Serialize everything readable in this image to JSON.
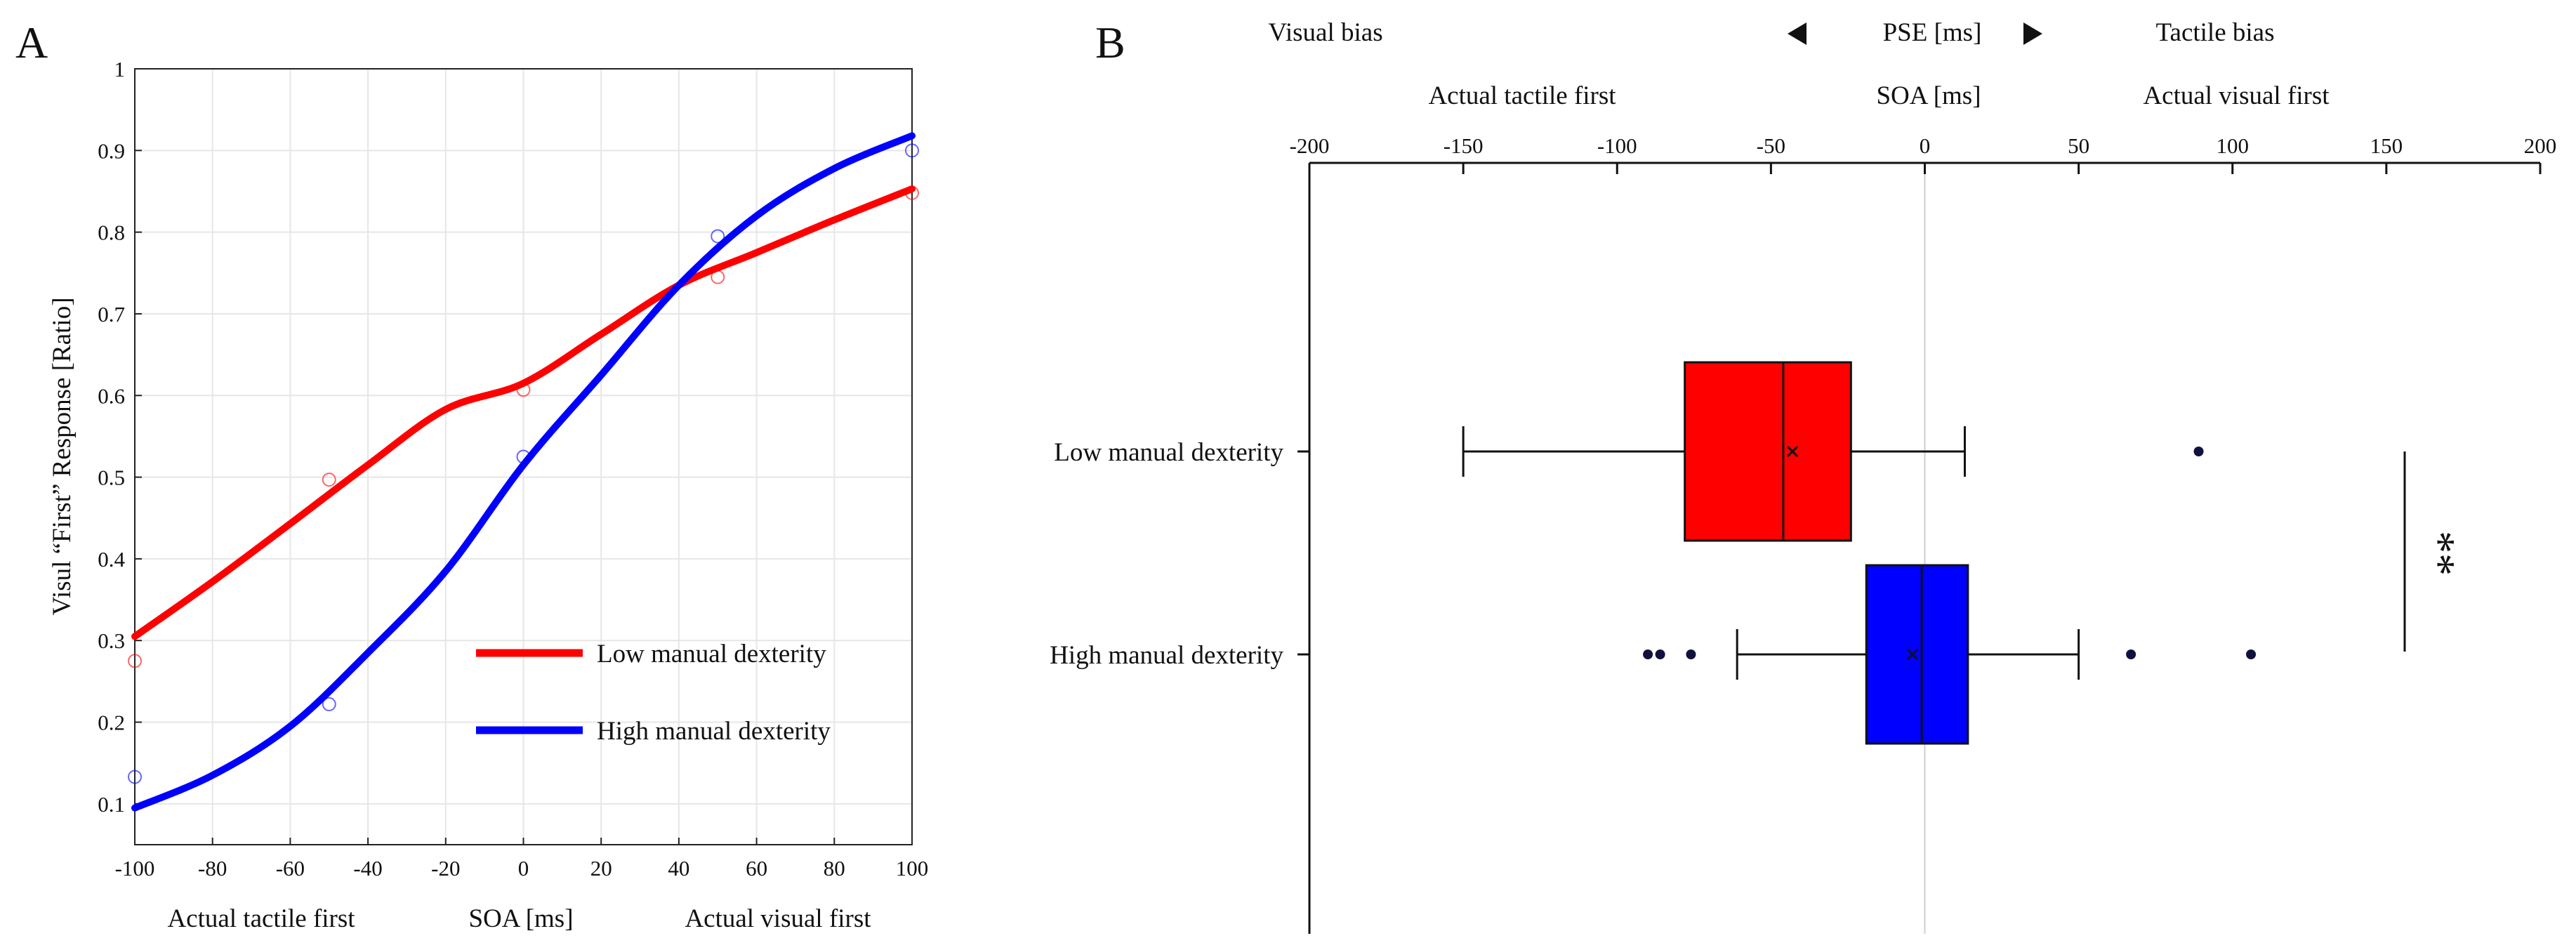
{
  "chart_data": [
    {
      "panel": "A",
      "type": "line",
      "x_ticks": [
        -100,
        -80,
        -60,
        -40,
        -20,
        0,
        20,
        40,
        60,
        80,
        100
      ],
      "y_ticks": [
        0.1,
        0.2,
        0.3,
        0.4,
        0.5,
        0.6,
        0.7,
        0.8,
        0.9,
        1
      ],
      "tick_labels_x": [
        "-100",
        "-80",
        "-60",
        "-40",
        "-20",
        "0",
        "20",
        "40",
        "60",
        "80",
        "100"
      ],
      "tick_labels_y": [
        "0.1",
        "0.2",
        "0.3",
        "0.4",
        "0.5",
        "0.6",
        "0.7",
        "0.8",
        "0.9",
        "1"
      ],
      "xlim": [
        -100,
        100
      ],
      "ylim": [
        0.05,
        1.0
      ],
      "ylabel": "Visul “First” Response [Ratio]",
      "xlabel_left": "Actual tactile first",
      "xlabel_center": "SOA [ms]",
      "xlabel_right": "Actual visual first",
      "grid": true,
      "legend_position": "bottom-right",
      "series": [
        {
          "name": "Low manual dexterity",
          "color": "#ff0000",
          "x": [
            -100,
            -50,
            0,
            50,
            100
          ],
          "observed": [
            0.275,
            0.497,
            0.607,
            0.745,
            0.848
          ],
          "fit_x": [
            -100,
            -80,
            -60,
            -40,
            -20,
            0,
            20,
            40,
            60,
            80,
            100
          ],
          "fit": [
            0.305,
            0.372,
            0.443,
            0.515,
            0.583,
            0.615,
            0.675,
            0.735,
            0.775,
            0.815,
            0.853
          ]
        },
        {
          "name": "High manual dexterity",
          "color": "#0000ff",
          "x": [
            -100,
            -50,
            0,
            50,
            100
          ],
          "observed": [
            0.133,
            0.222,
            0.525,
            0.795,
            0.9
          ],
          "fit_x": [
            -100,
            -80,
            -60,
            -40,
            -20,
            0,
            20,
            40,
            60,
            80,
            100
          ],
          "fit": [
            0.095,
            0.135,
            0.195,
            0.285,
            0.385,
            0.515,
            0.625,
            0.735,
            0.82,
            0.878,
            0.918
          ]
        }
      ]
    },
    {
      "panel": "B",
      "type": "box",
      "header_left": "Visual bias",
      "header_center": "PSE [ms]",
      "header_right": "Tactile bias",
      "axis_left": "Actual tactile first",
      "axis_center": "SOA [ms]",
      "axis_right": "Actual visual first",
      "x_ticks": [
        -200,
        -150,
        -100,
        -50,
        0,
        50,
        100,
        150,
        200
      ],
      "tick_labels_x": [
        "-200",
        "-150",
        "-100",
        "-50",
        "0",
        "50",
        "100",
        "150",
        "200"
      ],
      "xlim": [
        -200,
        200
      ],
      "significance": "**",
      "groups": [
        {
          "name": "Low manual dexterity",
          "color": "#ff0000",
          "whisker_low": -150,
          "q1": -78,
          "median": -46,
          "q3": -24,
          "whisker_high": 13,
          "mean": -43,
          "outliers": [
            89
          ]
        },
        {
          "name": "High manual dexterity",
          "color": "#0000ff",
          "whisker_low": -61,
          "q1": -19,
          "median": -1,
          "q3": 14,
          "whisker_high": 50,
          "mean": -4,
          "outliers": [
            -90,
            -86,
            -76,
            67,
            106
          ]
        }
      ]
    }
  ],
  "labels": {
    "panel_a": "A",
    "panel_b": "B"
  }
}
